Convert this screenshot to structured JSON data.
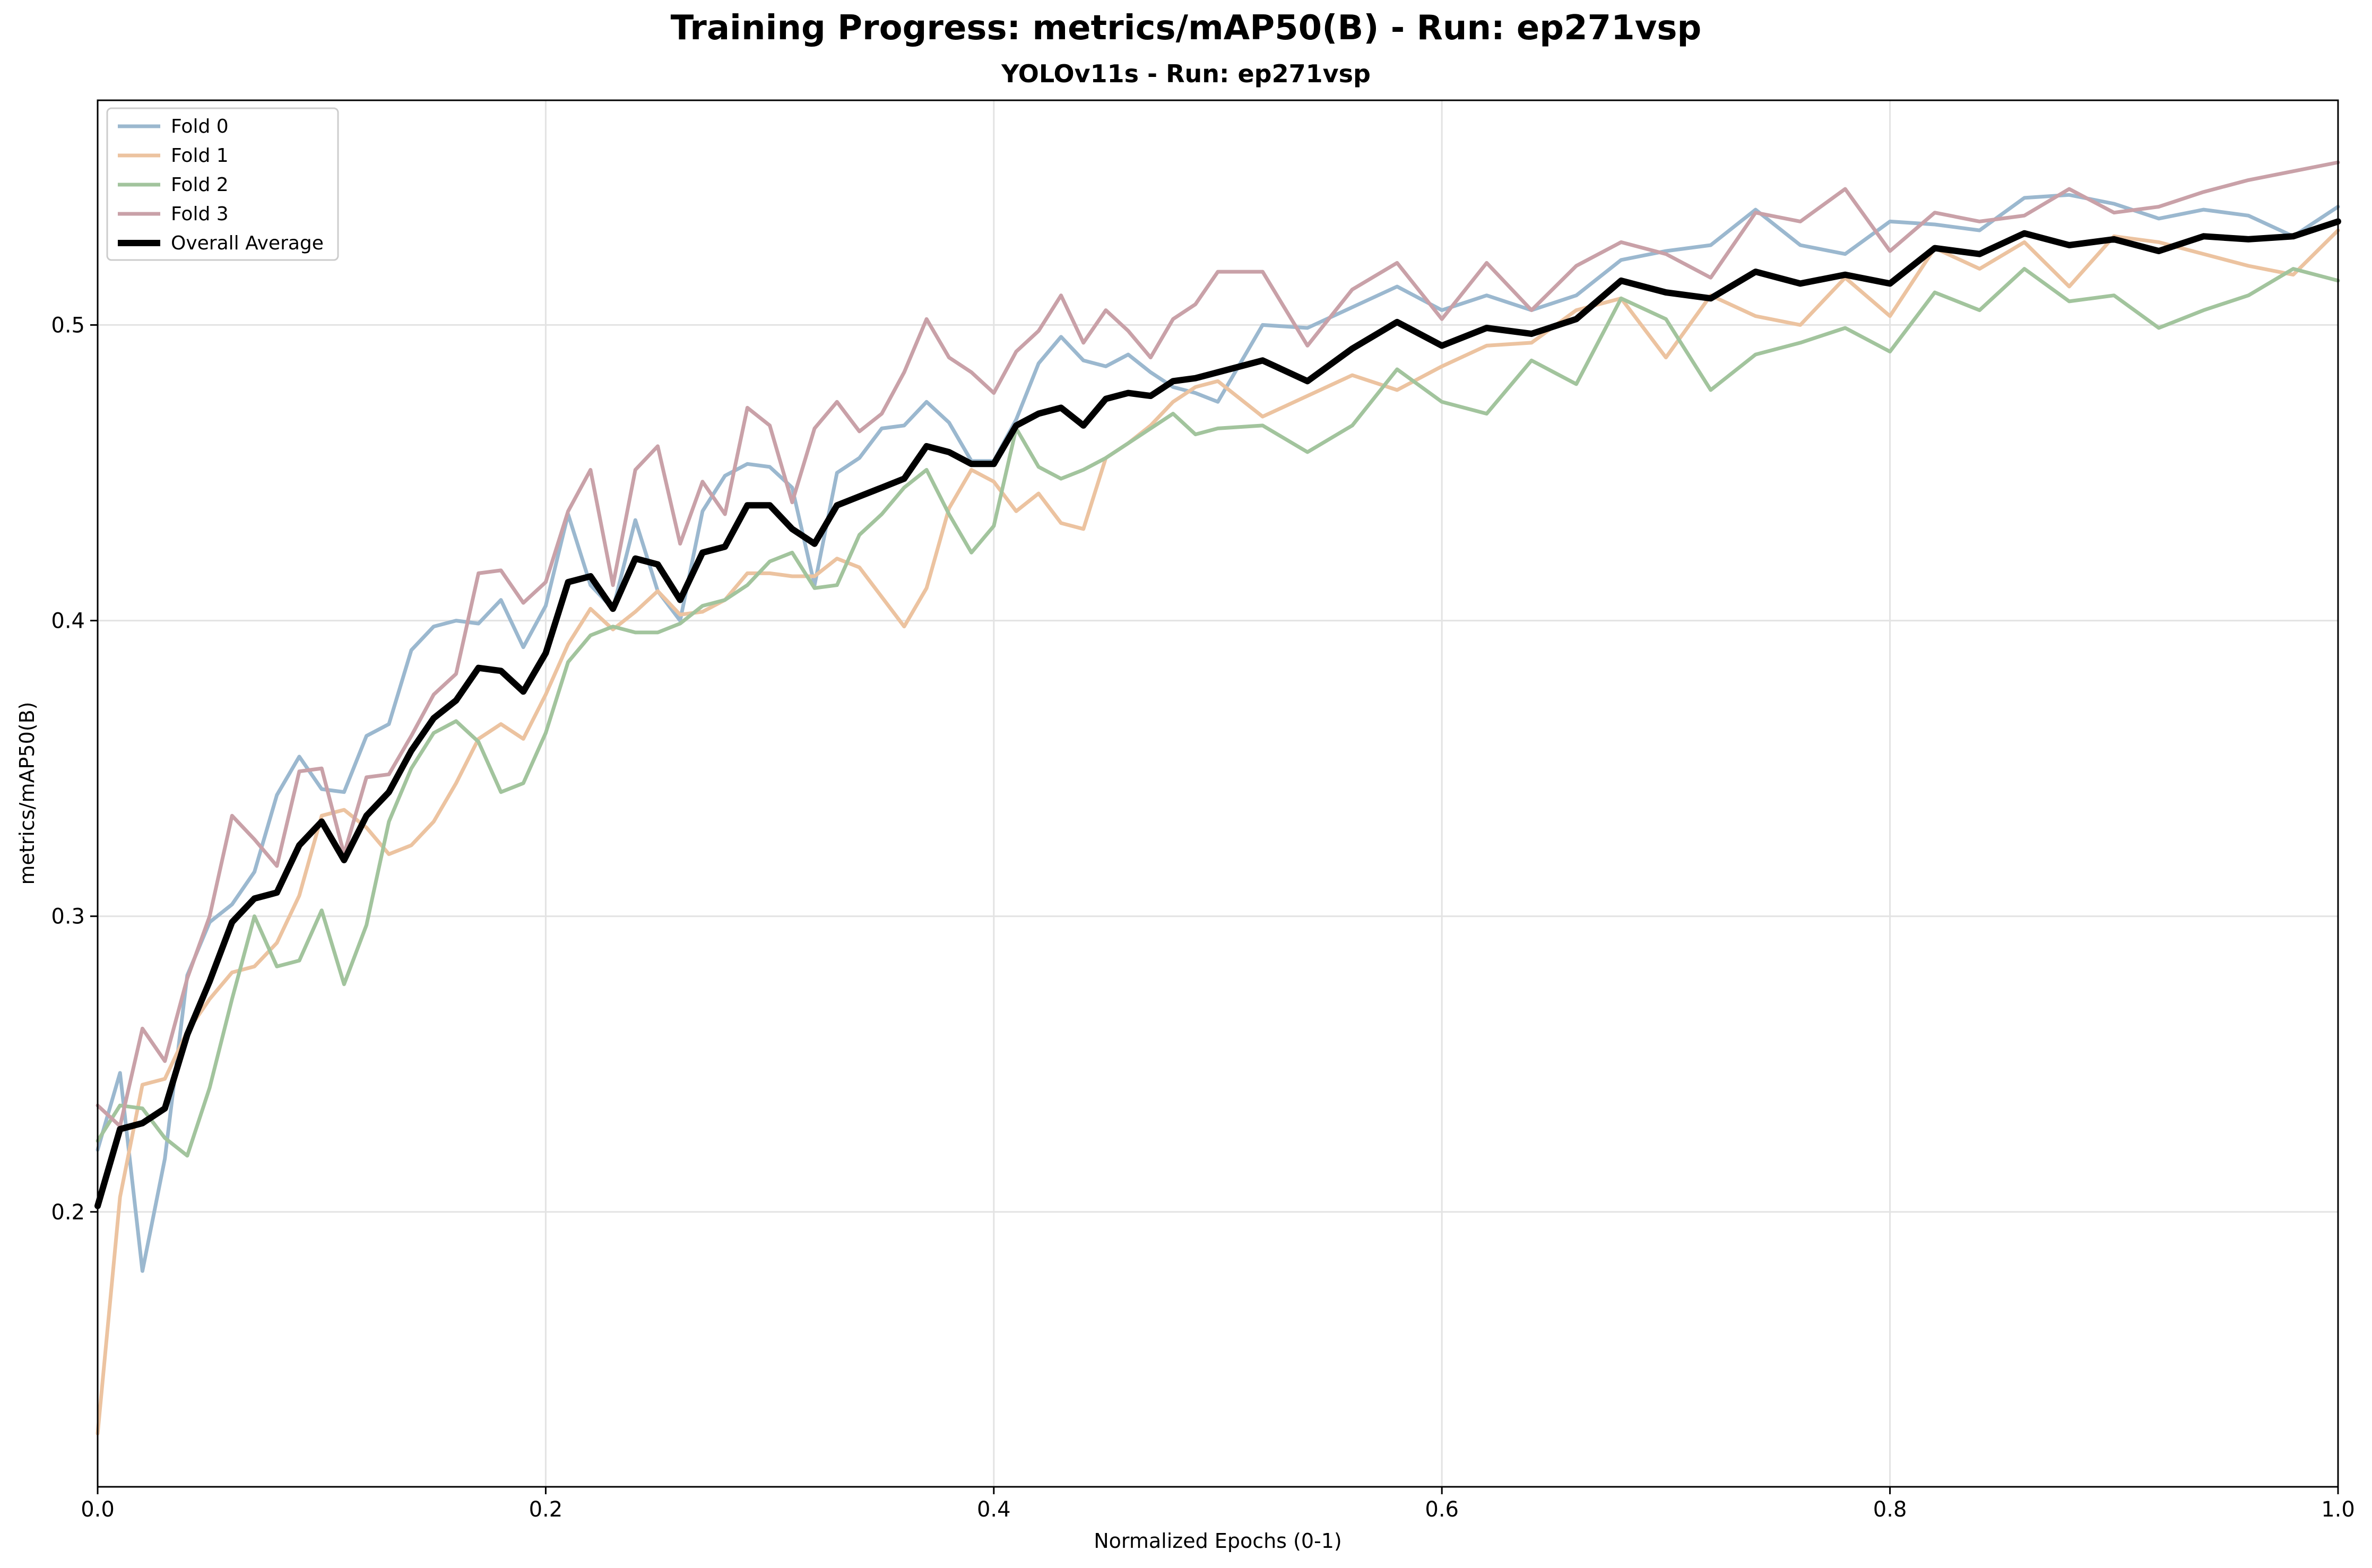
{
  "chart_data": {
    "type": "line",
    "title": "Training Progress: metrics/mAP50(B) - Run: ep271vsp",
    "subtitle": "YOLOv11s - Run: ep271vsp",
    "xlabel": "Normalized Epochs (0-1)",
    "ylabel": "metrics/mAP50(B)",
    "xlim": [
      0,
      1
    ],
    "ylim": [
      0.107,
      0.576
    ],
    "xticks": [
      0,
      0.2,
      0.4,
      0.6,
      0.8,
      1.0
    ],
    "xtick_labels": [
      "0.0",
      "0.2",
      "0.4",
      "0.6",
      "0.8",
      "1.0"
    ],
    "yticks": [
      0.2,
      0.3,
      0.4,
      0.5
    ],
    "ytick_labels": [
      "0.2",
      "0.3",
      "0.4",
      "0.5"
    ],
    "grid": true,
    "legend_position": "top-left",
    "series": [
      {
        "name": "Fold 0",
        "color": "#9bb8cf",
        "x": [
          0.0,
          0.01,
          0.02,
          0.03,
          0.04,
          0.05,
          0.06,
          0.07,
          0.08,
          0.09,
          0.1,
          0.11,
          0.12,
          0.13,
          0.14,
          0.15,
          0.16,
          0.17,
          0.18,
          0.19,
          0.2,
          0.21,
          0.22,
          0.23,
          0.24,
          0.25,
          0.26,
          0.27,
          0.28,
          0.29,
          0.3,
          0.31,
          0.32,
          0.33,
          0.34,
          0.35,
          0.36,
          0.37,
          0.38,
          0.39,
          0.4,
          0.41,
          0.42,
          0.43,
          0.44,
          0.45,
          0.46,
          0.47,
          0.48,
          0.49,
          0.5,
          0.52,
          0.54,
          0.56,
          0.58,
          0.6,
          0.62,
          0.64,
          0.66,
          0.68,
          0.7,
          0.72,
          0.74,
          0.76,
          0.78,
          0.8,
          0.82,
          0.84,
          0.86,
          0.88,
          0.9,
          0.92,
          0.94,
          0.96,
          0.98,
          1.0
        ],
        "y": [
          0.221,
          0.247,
          0.18,
          0.218,
          0.28,
          0.298,
          0.304,
          0.315,
          0.341,
          0.354,
          0.343,
          0.342,
          0.361,
          0.365,
          0.39,
          0.398,
          0.4,
          0.399,
          0.407,
          0.391,
          0.405,
          0.436,
          0.412,
          0.404,
          0.434,
          0.41,
          0.4,
          0.437,
          0.449,
          0.453,
          0.452,
          0.445,
          0.412,
          0.45,
          0.455,
          0.465,
          0.466,
          0.474,
          0.467,
          0.454,
          0.454,
          0.468,
          0.487,
          0.496,
          0.488,
          0.486,
          0.49,
          0.484,
          0.479,
          0.477,
          0.474,
          0.5,
          0.499,
          0.506,
          0.513,
          0.505,
          0.51,
          0.505,
          0.51,
          0.522,
          0.525,
          0.527,
          0.539,
          0.527,
          0.524,
          0.535,
          0.534,
          0.532,
          0.543,
          0.544,
          0.541,
          0.536,
          0.539,
          0.537,
          0.53,
          0.54
        ]
      },
      {
        "name": "Fold 1",
        "color": "#ecc3a0",
        "x": [
          0.0,
          0.01,
          0.02,
          0.03,
          0.04,
          0.05,
          0.06,
          0.07,
          0.08,
          0.09,
          0.1,
          0.11,
          0.12,
          0.13,
          0.14,
          0.15,
          0.16,
          0.17,
          0.18,
          0.19,
          0.2,
          0.21,
          0.22,
          0.23,
          0.24,
          0.25,
          0.26,
          0.27,
          0.28,
          0.29,
          0.3,
          0.31,
          0.32,
          0.33,
          0.34,
          0.35,
          0.36,
          0.37,
          0.38,
          0.39,
          0.4,
          0.41,
          0.42,
          0.43,
          0.44,
          0.45,
          0.46,
          0.47,
          0.48,
          0.49,
          0.5,
          0.52,
          0.54,
          0.56,
          0.58,
          0.6,
          0.62,
          0.64,
          0.66,
          0.68,
          0.7,
          0.72,
          0.74,
          0.76,
          0.78,
          0.8,
          0.82,
          0.84,
          0.86,
          0.88,
          0.9,
          0.92,
          0.94,
          0.96,
          0.98,
          1.0
        ],
        "y": [
          0.125,
          0.205,
          0.243,
          0.245,
          0.261,
          0.272,
          0.281,
          0.283,
          0.291,
          0.307,
          0.334,
          0.336,
          0.33,
          0.321,
          0.324,
          0.332,
          0.345,
          0.36,
          0.365,
          0.36,
          0.375,
          0.392,
          0.404,
          0.397,
          0.403,
          0.41,
          0.402,
          0.403,
          0.407,
          0.416,
          0.416,
          0.415,
          0.415,
          0.421,
          0.418,
          0.408,
          0.398,
          0.411,
          0.438,
          0.451,
          0.447,
          0.437,
          0.443,
          0.433,
          0.431,
          0.455,
          0.46,
          0.466,
          0.474,
          0.479,
          0.481,
          0.469,
          0.476,
          0.483,
          0.478,
          0.486,
          0.493,
          0.494,
          0.505,
          0.509,
          0.489,
          0.51,
          0.503,
          0.5,
          0.516,
          0.503,
          0.526,
          0.519,
          0.528,
          0.513,
          0.53,
          0.528,
          0.524,
          0.52,
          0.517,
          0.532
        ]
      },
      {
        "name": "Fold 2",
        "color": "#a2c49d",
        "x": [
          0.0,
          0.01,
          0.02,
          0.03,
          0.04,
          0.05,
          0.06,
          0.07,
          0.08,
          0.09,
          0.1,
          0.11,
          0.12,
          0.13,
          0.14,
          0.15,
          0.16,
          0.17,
          0.18,
          0.19,
          0.2,
          0.21,
          0.22,
          0.23,
          0.24,
          0.25,
          0.26,
          0.27,
          0.28,
          0.29,
          0.3,
          0.31,
          0.32,
          0.33,
          0.34,
          0.35,
          0.36,
          0.37,
          0.38,
          0.39,
          0.4,
          0.41,
          0.42,
          0.43,
          0.44,
          0.45,
          0.46,
          0.47,
          0.48,
          0.49,
          0.5,
          0.52,
          0.54,
          0.56,
          0.58,
          0.6,
          0.62,
          0.64,
          0.66,
          0.68,
          0.7,
          0.72,
          0.74,
          0.76,
          0.78,
          0.8,
          0.82,
          0.84,
          0.86,
          0.88,
          0.9,
          0.92,
          0.94,
          0.96,
          0.98,
          1.0
        ],
        "y": [
          0.224,
          0.236,
          0.235,
          0.225,
          0.219,
          0.242,
          0.272,
          0.3,
          0.283,
          0.285,
          0.302,
          0.277,
          0.297,
          0.332,
          0.35,
          0.362,
          0.366,
          0.359,
          0.342,
          0.345,
          0.362,
          0.386,
          0.395,
          0.398,
          0.396,
          0.396,
          0.399,
          0.405,
          0.407,
          0.412,
          0.42,
          0.423,
          0.411,
          0.412,
          0.429,
          0.436,
          0.445,
          0.451,
          0.436,
          0.423,
          0.432,
          0.465,
          0.452,
          0.448,
          0.451,
          0.455,
          0.46,
          0.465,
          0.47,
          0.463,
          0.465,
          0.466,
          0.457,
          0.466,
          0.485,
          0.474,
          0.47,
          0.488,
          0.48,
          0.509,
          0.502,
          0.478,
          0.49,
          0.494,
          0.499,
          0.491,
          0.511,
          0.505,
          0.519,
          0.508,
          0.51,
          0.499,
          0.505,
          0.51,
          0.519,
          0.515
        ]
      },
      {
        "name": "Fold 3",
        "color": "#c9a1a8",
        "x": [
          0.0,
          0.01,
          0.02,
          0.03,
          0.04,
          0.05,
          0.06,
          0.07,
          0.08,
          0.09,
          0.1,
          0.11,
          0.12,
          0.13,
          0.14,
          0.15,
          0.16,
          0.17,
          0.18,
          0.19,
          0.2,
          0.21,
          0.22,
          0.23,
          0.24,
          0.25,
          0.26,
          0.27,
          0.28,
          0.29,
          0.3,
          0.31,
          0.32,
          0.33,
          0.34,
          0.35,
          0.36,
          0.37,
          0.38,
          0.39,
          0.4,
          0.41,
          0.42,
          0.43,
          0.44,
          0.45,
          0.46,
          0.47,
          0.48,
          0.49,
          0.5,
          0.52,
          0.54,
          0.56,
          0.58,
          0.6,
          0.62,
          0.64,
          0.66,
          0.68,
          0.7,
          0.72,
          0.74,
          0.76,
          0.78,
          0.8,
          0.82,
          0.84,
          0.86,
          0.88,
          0.9,
          0.92,
          0.94,
          0.96,
          0.98,
          1.0
        ],
        "y": [
          0.236,
          0.229,
          0.262,
          0.251,
          0.279,
          0.3,
          0.334,
          0.326,
          0.317,
          0.349,
          0.35,
          0.321,
          0.347,
          0.348,
          0.361,
          0.375,
          0.382,
          0.416,
          0.417,
          0.406,
          0.413,
          0.437,
          0.451,
          0.412,
          0.451,
          0.459,
          0.426,
          0.447,
          0.436,
          0.472,
          0.466,
          0.44,
          0.465,
          0.474,
          0.464,
          0.47,
          0.484,
          0.502,
          0.489,
          0.484,
          0.477,
          0.491,
          0.498,
          0.51,
          0.494,
          0.505,
          0.498,
          0.489,
          0.502,
          0.507,
          0.518,
          0.518,
          0.493,
          0.512,
          0.521,
          0.502,
          0.521,
          0.505,
          0.52,
          0.528,
          0.524,
          0.516,
          0.538,
          0.535,
          0.546,
          0.525,
          0.538,
          0.535,
          0.537,
          0.546,
          0.538,
          0.54,
          0.545,
          0.549,
          0.552,
          0.555
        ]
      },
      {
        "name": "Overall Average",
        "color": "#000000",
        "x": [
          0.0,
          0.01,
          0.02,
          0.03,
          0.04,
          0.05,
          0.06,
          0.07,
          0.08,
          0.09,
          0.1,
          0.11,
          0.12,
          0.13,
          0.14,
          0.15,
          0.16,
          0.17,
          0.18,
          0.19,
          0.2,
          0.21,
          0.22,
          0.23,
          0.24,
          0.25,
          0.26,
          0.27,
          0.28,
          0.29,
          0.3,
          0.31,
          0.32,
          0.33,
          0.34,
          0.35,
          0.36,
          0.37,
          0.38,
          0.39,
          0.4,
          0.41,
          0.42,
          0.43,
          0.44,
          0.45,
          0.46,
          0.47,
          0.48,
          0.49,
          0.5,
          0.52,
          0.54,
          0.56,
          0.58,
          0.6,
          0.62,
          0.64,
          0.66,
          0.68,
          0.7,
          0.72,
          0.74,
          0.76,
          0.78,
          0.8,
          0.82,
          0.84,
          0.86,
          0.88,
          0.9,
          0.92,
          0.94,
          0.96,
          0.98,
          1.0
        ],
        "y": [
          0.202,
          0.228,
          0.23,
          0.235,
          0.26,
          0.278,
          0.298,
          0.306,
          0.308,
          0.324,
          0.332,
          0.319,
          0.334,
          0.342,
          0.356,
          0.367,
          0.373,
          0.384,
          0.383,
          0.376,
          0.389,
          0.413,
          0.415,
          0.404,
          0.421,
          0.419,
          0.407,
          0.423,
          0.425,
          0.439,
          0.439,
          0.431,
          0.426,
          0.439,
          0.442,
          0.445,
          0.448,
          0.459,
          0.457,
          0.453,
          0.453,
          0.466,
          0.47,
          0.472,
          0.466,
          0.475,
          0.477,
          0.476,
          0.481,
          0.482,
          0.484,
          0.488,
          0.481,
          0.492,
          0.501,
          0.493,
          0.499,
          0.497,
          0.502,
          0.515,
          0.511,
          0.509,
          0.518,
          0.514,
          0.517,
          0.514,
          0.526,
          0.524,
          0.531,
          0.527,
          0.529,
          0.525,
          0.53,
          0.529,
          0.53,
          0.535
        ]
      }
    ]
  }
}
